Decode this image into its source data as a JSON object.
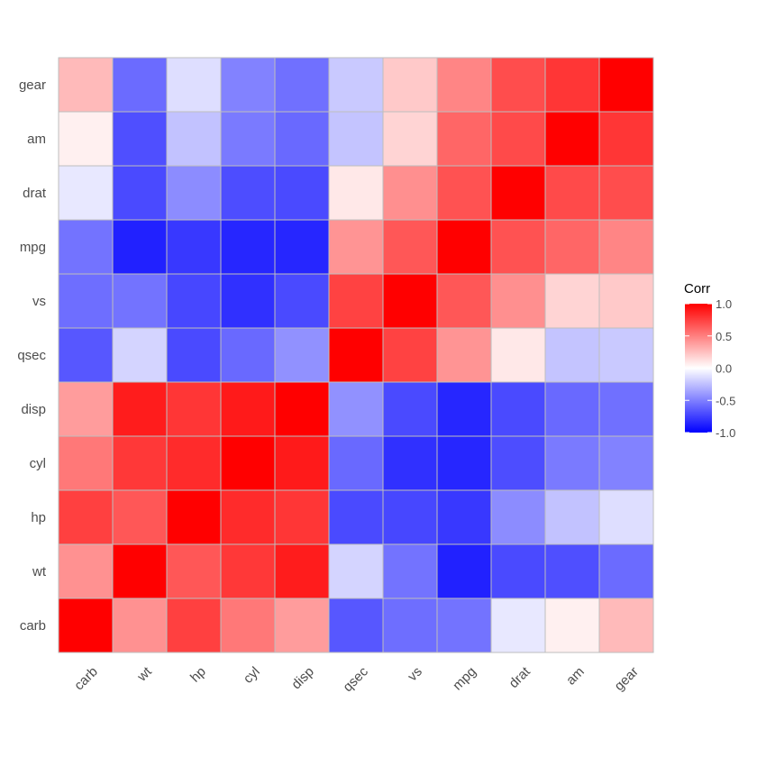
{
  "chart_data": {
    "type": "heatmap",
    "title": "",
    "xlabel": "",
    "ylabel": "",
    "x_categories": [
      "carb",
      "wt",
      "hp",
      "cyl",
      "disp",
      "qsec",
      "vs",
      "mpg",
      "drat",
      "am",
      "gear"
    ],
    "y_categories": [
      "carb",
      "wt",
      "hp",
      "cyl",
      "disp",
      "qsec",
      "vs",
      "mpg",
      "drat",
      "am",
      "gear"
    ],
    "values": [
      [
        1.0,
        0.43,
        0.75,
        0.53,
        0.39,
        -0.66,
        -0.57,
        -0.55,
        -0.09,
        0.06,
        0.27
      ],
      [
        0.43,
        1.0,
        0.66,
        0.78,
        0.89,
        -0.17,
        -0.55,
        -0.87,
        -0.71,
        -0.69,
        -0.58
      ],
      [
        0.75,
        0.66,
        1.0,
        0.83,
        0.79,
        -0.71,
        -0.72,
        -0.78,
        -0.45,
        -0.24,
        -0.13
      ],
      [
        0.53,
        0.78,
        0.83,
        1.0,
        0.9,
        -0.59,
        -0.81,
        -0.85,
        -0.7,
        -0.52,
        -0.49
      ],
      [
        0.39,
        0.89,
        0.79,
        0.9,
        1.0,
        -0.43,
        -0.71,
        -0.85,
        -0.71,
        -0.59,
        -0.56
      ],
      [
        -0.66,
        -0.17,
        -0.71,
        -0.59,
        -0.43,
        1.0,
        0.74,
        0.42,
        0.09,
        -0.23,
        -0.21
      ],
      [
        -0.57,
        -0.55,
        -0.72,
        -0.81,
        -0.71,
        0.74,
        1.0,
        0.66,
        0.44,
        0.17,
        0.21
      ],
      [
        -0.55,
        -0.87,
        -0.78,
        -0.85,
        -0.85,
        0.42,
        0.66,
        1.0,
        0.68,
        0.6,
        0.48
      ],
      [
        -0.09,
        -0.71,
        -0.45,
        -0.7,
        -0.71,
        0.09,
        0.44,
        0.68,
        1.0,
        0.71,
        0.7
      ],
      [
        0.06,
        -0.69,
        -0.24,
        -0.52,
        -0.59,
        -0.23,
        0.17,
        0.6,
        0.71,
        1.0,
        0.79
      ],
      [
        0.27,
        -0.58,
        -0.13,
        -0.49,
        -0.56,
        -0.21,
        0.21,
        0.48,
        0.7,
        0.79,
        1.0
      ]
    ],
    "zlim": [
      -1,
      1
    ],
    "color_low": "#0000FF",
    "color_mid": "#FFFFFF",
    "color_high": "#FF0000",
    "tile_border_color": "#BEBEBE",
    "legend": {
      "title": "Corr",
      "placement": "right",
      "breaks": [
        1.0,
        0.5,
        0.0,
        -0.5,
        -1.0
      ],
      "labels": [
        "1.0",
        "0.5",
        "0.0",
        "-0.5",
        "-1.0"
      ]
    },
    "grid": false
  }
}
